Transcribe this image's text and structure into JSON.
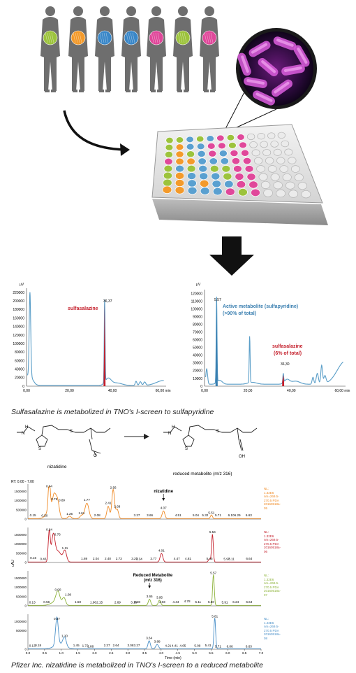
{
  "top_panel": {
    "people_icon": "person-silhouette-icon",
    "bacteria_icon": "bacteria-micrograph-icon",
    "plate_icon": "well-plate-icon",
    "arrow_icon": "down-arrow-icon",
    "person_colors": [
      "#9cc33c",
      "#f39a2b",
      "#3a87c8",
      "#3a87c8",
      "#e0489a",
      "#9cc33c",
      "#e0489a"
    ]
  },
  "chart1": {
    "yunit": "µV",
    "xunit": "min",
    "ytick_labels": [
      "0",
      "20000",
      "40000",
      "60000",
      "80000",
      "100000",
      "120000",
      "140000",
      "160000",
      "180000",
      "200000",
      "220000"
    ],
    "xtick_labels": [
      "0,00",
      "20,00",
      "40,00",
      "60,00 min"
    ],
    "peak_label": "36,37",
    "annotation": "sulfasalazine"
  },
  "chart2": {
    "yunit": "µV",
    "ytick_labels": [
      "0",
      "10000",
      "20000",
      "30000",
      "40000",
      "50000",
      "60000",
      "70000",
      "80000",
      "90000",
      "100000",
      "110000",
      "120000"
    ],
    "xtick_labels": [
      "0,00",
      "20,00",
      "40,00",
      "60,00 min"
    ],
    "peak1_label": "5,57",
    "peak2_label": "36,30",
    "annotation_active_1": "Active metabolite (sulfapyridine)",
    "annotation_active_2": "(>90% of total)",
    "annotation_sulfa_1": "sulfasalazine",
    "annotation_sulfa_2": "(6% of total)"
  },
  "caption1": "Sulfasalazine is metabolized in TNO's I-screen to sulfapyridine",
  "chemistry": {
    "left_label": "nizatidine",
    "right_label": "reduced metabolite (m/z 316)",
    "left_bottom_atom": "O",
    "right_bottom_atom": "OH",
    "s_atom": "S",
    "n_atom": "N",
    "h_atom": "H"
  },
  "traces": {
    "rt_label": "RT: 0.00 - 7.00",
    "yaxis_label": "uAU",
    "xtick_labels": [
      "0.0",
      "0.5",
      "1.0",
      "1.5",
      "2.0",
      "2.5",
      "3.0",
      "3.5",
      "4.0",
      "4.5",
      "5.0",
      "5.5",
      "6.0",
      "6.5",
      "7.0"
    ],
    "xlabel": "Time (min)",
    "panels": [
      {
        "color": "#f08a24",
        "ymax_label": "1500000",
        "ymid_label": "1000000",
        "ylow_label": "500000",
        "legend": "NL:\n1.32E6\nnm=269.5-\n270.5 PDA\n20160518a-\n05",
        "peak_labels": [
          "0.64",
          "2.56",
          "0.79",
          "0.89",
          "1.77",
          "2.41",
          "2.68",
          "0.15",
          "0.50",
          "1.25",
          "1.61",
          "2.08",
          "3.27",
          "3.66",
          "4.07",
          "4.51",
          "5.04",
          "5.32",
          "5.51",
          "5.71",
          "6.10",
          "6.29",
          "6.63"
        ],
        "annotation": "nizatidine"
      },
      {
        "color": "#c41e2a",
        "ymax_label": "1500000",
        "ymid_label": "1000000",
        "ylow_label": "500000",
        "legend": "NL:\n1.32E6\nnm=269.5-\n270.5 PDA\n20160518a-\n06",
        "peak_labels": [
          "0.64",
          "0.76",
          "1.11",
          "5.54",
          "4.01",
          "0.16",
          "0.46",
          "1.69",
          "2.04",
          "2.40",
          "2.73",
          "3.20",
          "3.34",
          "3.77",
          "4.47",
          "4.81",
          "5.45",
          "5.97",
          "6.11",
          "6.64"
        ]
      },
      {
        "color": "#8db33a",
        "ymax_label": "1500000",
        "ymid_label": "1000000",
        "ylow_label": "500000",
        "legend": "NL:\n1.32E6\nnm=269.5-\n270.5 PDA\n20160518a-\n07",
        "peak_labels": [
          "5.57",
          "0.90",
          "1.08",
          "3.65",
          "3.95",
          "0.13",
          "0.56",
          "1.50",
          "1.96",
          "2.15",
          "2.69",
          "3.18",
          "3.28",
          "4.03",
          "4.44",
          "4.78",
          "5.11",
          "5.50",
          "5.91",
          "6.24",
          "6.64"
        ],
        "annotation_1": "Reduced Metabolite",
        "annotation_2": "(m/z 316)"
      },
      {
        "color": "#4a90c8",
        "ymax_label": "1000000",
        "ymid_label": "500000",
        "ylow_label": "",
        "legend": "NL:\n1.43E6\nnm=269.5-\n270.5 PDA\n20160518a-\n08",
        "peak_labels": [
          "5.61",
          "0.87",
          "1.10",
          "3.64",
          "3.88",
          "0.13",
          "0.18",
          "1.45",
          "1.72",
          "1.88",
          "2.37",
          "2.64",
          "3.08",
          "3.27",
          "4.21",
          "4.41",
          "4.65",
          "5.09",
          "5.41",
          "5.71",
          "6.06",
          "6.63"
        ]
      }
    ]
  },
  "caption2": "Pfizer Inc. nizatidine is metabolized in TNO's I-screen to a reduced metabolite"
}
